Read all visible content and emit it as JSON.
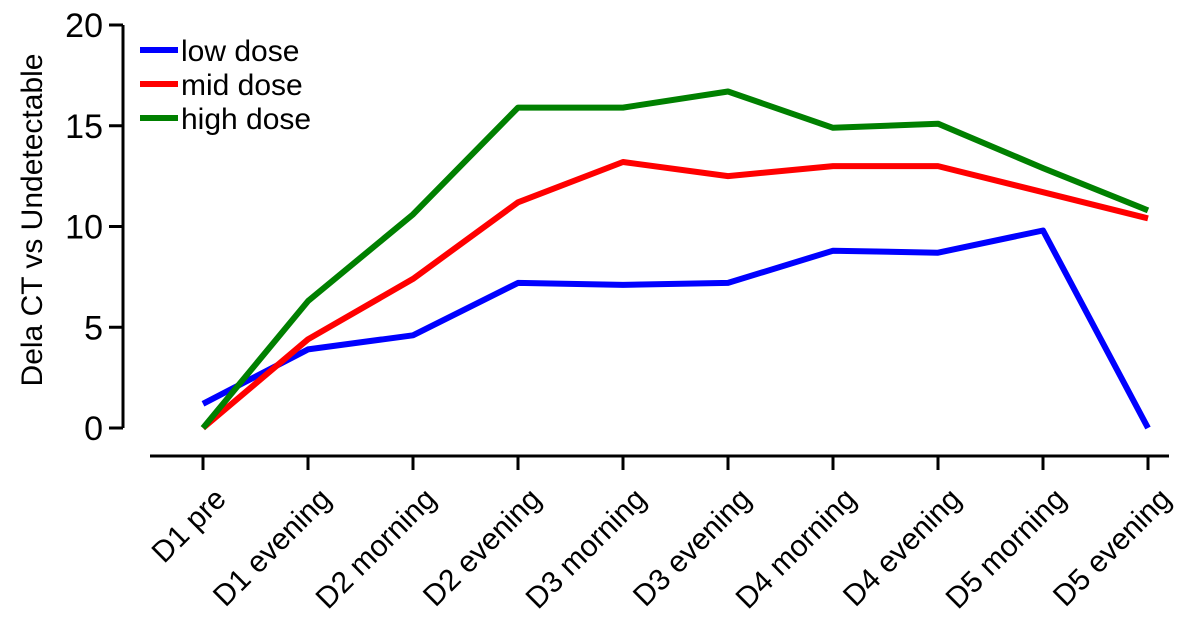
{
  "chart_data": {
    "type": "line",
    "title": "",
    "xlabel": "",
    "ylabel": "Dela CT vs Undetectable",
    "ylim": [
      0,
      20
    ],
    "yticks": [
      0,
      5,
      10,
      15,
      20
    ],
    "grid": false,
    "legend_position": "top-left",
    "categories": [
      "D1 pre",
      "D1 evening",
      "D2 morning",
      "D2 evening",
      "D3 morning",
      "D3 evening",
      "D4 morning",
      "D4 evening",
      "D5 morning",
      "D5 evening"
    ],
    "series": [
      {
        "name": "low dose",
        "color": "#0000ff",
        "values": [
          1.2,
          3.9,
          4.6,
          7.2,
          7.1,
          7.2,
          8.8,
          8.7,
          9.8,
          0
        ]
      },
      {
        "name": "mid dose",
        "color": "#ff0000",
        "values": [
          0,
          4.4,
          7.4,
          11.2,
          13.2,
          12.5,
          13.0,
          13.0,
          11.7,
          10.4
        ]
      },
      {
        "name": "high dose",
        "color": "#008000",
        "values": [
          0,
          6.3,
          10.6,
          15.9,
          15.9,
          16.7,
          14.9,
          15.1,
          12.9,
          10.8
        ]
      }
    ]
  }
}
